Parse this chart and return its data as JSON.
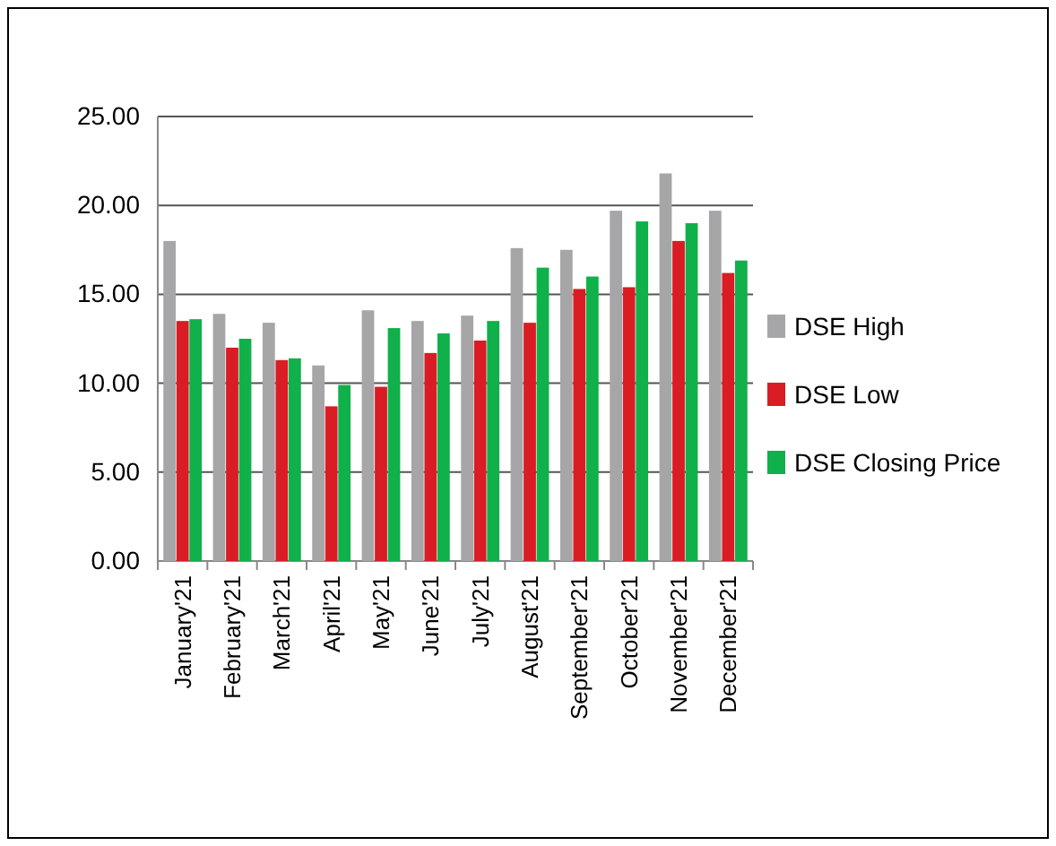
{
  "chart_data": {
    "type": "bar",
    "categories": [
      "January'21",
      "February'21",
      "March'21",
      "April'21",
      "May'21",
      "June'21",
      "July'21",
      "August'21",
      "September'21",
      "October'21",
      "November'21",
      "December'21"
    ],
    "series": [
      {
        "name": "DSE High",
        "color": "#a6a6a8",
        "values": [
          18.0,
          13.9,
          13.4,
          11.0,
          14.1,
          13.5,
          13.8,
          17.6,
          17.5,
          19.7,
          21.8,
          19.7
        ]
      },
      {
        "name": "DSE Low",
        "color": "#da1c24",
        "values": [
          13.5,
          12.0,
          11.3,
          8.7,
          9.8,
          11.7,
          12.4,
          13.4,
          15.3,
          15.4,
          18.0,
          16.2
        ]
      },
      {
        "name": "DSE Closing Price",
        "color": "#10b04a",
        "values": [
          13.6,
          12.5,
          11.4,
          9.9,
          13.1,
          12.8,
          13.5,
          16.5,
          16.0,
          19.1,
          19.0,
          16.9
        ]
      }
    ],
    "ylim": [
      0,
      25
    ],
    "yticks": [
      {
        "value": 0,
        "label": "0.00"
      },
      {
        "value": 5,
        "label": "5.00"
      },
      {
        "value": 10,
        "label": "10.00"
      },
      {
        "value": 15,
        "label": "15.00"
      },
      {
        "value": 20,
        "label": "20.00"
      },
      {
        "value": 25,
        "label": "25.00"
      }
    ],
    "grid": "y",
    "legend": "right"
  }
}
